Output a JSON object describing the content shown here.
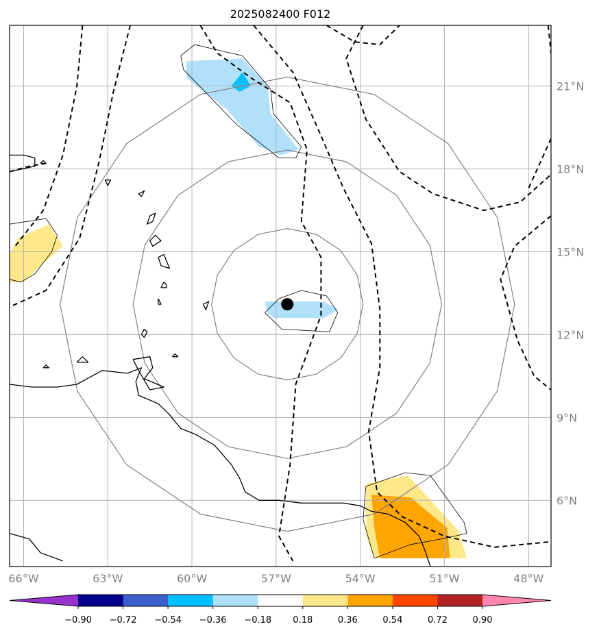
{
  "chart_data": {
    "type": "map",
    "title": "2025082400 F012",
    "lon_range": [
      -66.5,
      -47.2
    ],
    "lat_range": [
      3.6,
      23.2
    ],
    "lon_ticks": [
      {
        "value": -66,
        "label": "66°W"
      },
      {
        "value": -63,
        "label": "63°W"
      },
      {
        "value": -60,
        "label": "60°W"
      },
      {
        "value": -57,
        "label": "57°W"
      },
      {
        "value": -54,
        "label": "54°W"
      },
      {
        "value": -51,
        "label": "51°W"
      },
      {
        "value": -48,
        "label": "48°W"
      }
    ],
    "lat_ticks": [
      {
        "value": 21,
        "label": "21°N"
      },
      {
        "value": 18,
        "label": "18°N"
      },
      {
        "value": 15,
        "label": "15°N"
      },
      {
        "value": 12,
        "label": "12°N"
      },
      {
        "value": 9,
        "label": "9°N"
      },
      {
        "value": 6,
        "label": "6°N"
      }
    ],
    "grid": true,
    "center": {
      "lon": -56.6,
      "lat": 13.1
    },
    "range_rings_deg": [
      2.7,
      5.5,
      8.1
    ],
    "colorbar": {
      "levels": [
        -0.9,
        -0.72,
        -0.54,
        -0.36,
        -0.18,
        0.18,
        0.36,
        0.54,
        0.72,
        0.9
      ],
      "tick_labels": [
        "−0.90",
        "−0.72",
        "−0.54",
        "−0.36",
        "−0.18",
        "0.18",
        "0.36",
        "0.54",
        "0.72",
        "0.90"
      ],
      "colors": [
        "#9932cc",
        "#00008b",
        "#3a5fcd",
        "#00bfff",
        "#b0e0fa",
        "#ffffff",
        "#ffe88a",
        "#ffa500",
        "#ff4500",
        "#b22222",
        "#ff86b0"
      ],
      "extend": "both"
    },
    "shaded_regions": [
      {
        "value_range": [
          -0.36,
          -0.18
        ],
        "color": "#b0e0fa",
        "points": [
          [
            -60.2,
            21.9
          ],
          [
            -58.2,
            22.0
          ],
          [
            -57.3,
            21.0
          ],
          [
            -57.2,
            20.0
          ],
          [
            -56.2,
            18.7
          ],
          [
            -56.8,
            18.5
          ],
          [
            -57.6,
            18.8
          ],
          [
            -58.8,
            20.2
          ],
          [
            -60.2,
            21.3
          ]
        ]
      },
      {
        "value_range": [
          -0.54,
          -0.36
        ],
        "color": "#00bfff",
        "points": [
          [
            -58.2,
            21.5
          ],
          [
            -57.9,
            21.0
          ],
          [
            -58.3,
            20.8
          ],
          [
            -58.6,
            21.0
          ]
        ]
      },
      {
        "value_range": [
          -0.36,
          -0.18
        ],
        "color": "#b0e0fa",
        "points": [
          [
            -57.4,
            13.2
          ],
          [
            -55.3,
            13.2
          ],
          [
            -54.8,
            12.9
          ],
          [
            -55.3,
            12.6
          ],
          [
            -57.1,
            12.6
          ],
          [
            -57.3,
            12.8
          ]
        ]
      },
      {
        "value_range": [
          0.18,
          0.36
        ],
        "color": "#ffe88a",
        "points": [
          [
            -66.5,
            14.9
          ],
          [
            -66.2,
            15.5
          ],
          [
            -65.1,
            16.0
          ],
          [
            -64.6,
            15.2
          ],
          [
            -65.5,
            14.4
          ],
          [
            -66.0,
            13.9
          ],
          [
            -66.5,
            13.9
          ]
        ]
      },
      {
        "value_range": [
          0.18,
          0.36
        ],
        "color": "#ffe88a",
        "points": [
          [
            -53.8,
            6.6
          ],
          [
            -52.3,
            6.9
          ],
          [
            -50.5,
            4.9
          ],
          [
            -50.2,
            3.9
          ],
          [
            -53.5,
            3.9
          ],
          [
            -53.8,
            4.8
          ]
        ]
      },
      {
        "value_range": [
          0.36,
          0.54
        ],
        "color": "#ffa500",
        "points": [
          [
            -53.6,
            6.2
          ],
          [
            -52.2,
            6.1
          ],
          [
            -50.9,
            5.0
          ],
          [
            -50.8,
            3.9
          ],
          [
            -53.3,
            3.9
          ],
          [
            -53.5,
            5.0
          ]
        ]
      }
    ],
    "dashed_contours": [
      [
        [
          -63.9,
          23.2
        ],
        [
          -64.1,
          21.0
        ],
        [
          -64.6,
          18.5
        ],
        [
          -65.3,
          16.5
        ],
        [
          -66.3,
          15.2
        ]
      ],
      [
        [
          -62.2,
          23.2
        ],
        [
          -62.8,
          20.8
        ],
        [
          -63.3,
          18.3
        ],
        [
          -64.0,
          15.5
        ],
        [
          -65.2,
          13.6
        ],
        [
          -66.5,
          13.0
        ]
      ],
      [
        [
          -66.5,
          17.9
        ],
        [
          -65.8,
          18.1
        ],
        [
          -65.2,
          18.2
        ]
      ],
      [
        [
          -59.7,
          23.2
        ],
        [
          -59.1,
          22.2
        ],
        [
          -57.9,
          21.3
        ],
        [
          -56.5,
          20.4
        ],
        [
          -55.9,
          18.7
        ],
        [
          -56.1,
          16.1
        ],
        [
          -55.4,
          14.8
        ],
        [
          -55.4,
          12.7
        ],
        [
          -56.3,
          10.2
        ],
        [
          -56.5,
          7.3
        ],
        [
          -56.9,
          4.7
        ],
        [
          -56.4,
          3.8
        ]
      ],
      [
        [
          -57.8,
          23.2
        ],
        [
          -56.4,
          21.5
        ],
        [
          -55.4,
          19.2
        ],
        [
          -54.6,
          17.3
        ],
        [
          -53.6,
          15.3
        ],
        [
          -53.3,
          12.9
        ],
        [
          -53.3,
          10.8
        ],
        [
          -53.7,
          8.5
        ],
        [
          -53.4,
          6.3
        ],
        [
          -52.5,
          5.4
        ],
        [
          -51.0,
          4.7
        ],
        [
          -49.2,
          4.3
        ],
        [
          -47.2,
          4.5
        ]
      ],
      [
        [
          -55.2,
          23.2
        ],
        [
          -54.2,
          22.6
        ],
        [
          -53.3,
          22.5
        ],
        [
          -52.6,
          23.2
        ]
      ],
      [
        [
          -53.9,
          23.2
        ],
        [
          -54.5,
          22.0
        ],
        [
          -53.8,
          19.8
        ],
        [
          -52.6,
          17.9
        ],
        [
          -51.4,
          17.1
        ],
        [
          -49.6,
          16.5
        ],
        [
          -48.3,
          16.8
        ],
        [
          -47.2,
          17.8
        ]
      ],
      [
        [
          -47.3,
          23.2
        ],
        [
          -47.2,
          22.2
        ]
      ],
      [
        [
          -47.2,
          19.1
        ],
        [
          -48.0,
          17.3
        ]
      ],
      [
        [
          -47.2,
          16.3
        ],
        [
          -48.5,
          15.2
        ],
        [
          -49.0,
          14.0
        ],
        [
          -48.4,
          11.8
        ],
        [
          -47.8,
          10.5
        ],
        [
          -47.2,
          10.0
        ]
      ]
    ],
    "thin_contours": [
      [
        [
          -60.4,
          22.1
        ],
        [
          -59.9,
          22.5
        ],
        [
          -58.2,
          22.1
        ],
        [
          -57.2,
          20.9
        ],
        [
          -57.1,
          20.0
        ],
        [
          -56.1,
          18.8
        ],
        [
          -56.3,
          18.4
        ],
        [
          -56.9,
          18.4
        ],
        [
          -58.4,
          19.6
        ],
        [
          -60.3,
          21.6
        ],
        [
          -60.4,
          22.1
        ]
      ],
      [
        [
          -66.5,
          16.0
        ],
        [
          -65.2,
          16.2
        ],
        [
          -64.8,
          15.6
        ],
        [
          -65.0,
          15.0
        ],
        [
          -65.6,
          14.2
        ],
        [
          -66.1,
          13.9
        ],
        [
          -66.5,
          14.0
        ]
      ],
      [
        [
          -57.4,
          12.8
        ],
        [
          -56.9,
          13.3
        ],
        [
          -56.1,
          13.6
        ],
        [
          -55.2,
          13.4
        ],
        [
          -54.8,
          12.8
        ],
        [
          -55.1,
          12.1
        ],
        [
          -56.8,
          12.2
        ],
        [
          -57.4,
          12.8
        ]
      ],
      [
        [
          -53.8,
          6.5
        ],
        [
          -52.4,
          7.0
        ],
        [
          -51.5,
          6.9
        ],
        [
          -50.3,
          5.2
        ],
        [
          -50.2,
          4.8
        ],
        [
          -51.1,
          4.6
        ],
        [
          -52.2,
          4.4
        ],
        [
          -53.5,
          3.9
        ],
        [
          -53.9,
          5.3
        ],
        [
          -53.8,
          6.5
        ]
      ]
    ],
    "coastlines": [
      [
        [
          -66.5,
          10.2
        ],
        [
          -65.7,
          10.1
        ],
        [
          -64.8,
          10.1
        ],
        [
          -64.1,
          10.2
        ],
        [
          -63.2,
          10.7
        ],
        [
          -62.3,
          10.6
        ],
        [
          -61.8,
          10.8
        ],
        [
          -62.0,
          10.3
        ],
        [
          -61.9,
          9.8
        ],
        [
          -61.2,
          9.5
        ],
        [
          -60.8,
          9.1
        ],
        [
          -60.4,
          8.6
        ],
        [
          -59.9,
          8.4
        ],
        [
          -59.2,
          8.0
        ],
        [
          -58.6,
          7.3
        ],
        [
          -58.3,
          6.8
        ],
        [
          -58.1,
          6.3
        ],
        [
          -57.6,
          6.0
        ],
        [
          -56.9,
          6.0
        ],
        [
          -56.1,
          5.9
        ],
        [
          -55.3,
          5.9
        ],
        [
          -54.6,
          5.9
        ],
        [
          -54.0,
          5.8
        ],
        [
          -53.6,
          5.6
        ],
        [
          -53.0,
          5.5
        ],
        [
          -52.4,
          5.2
        ],
        [
          -51.9,
          4.7
        ],
        [
          -51.7,
          4.2
        ],
        [
          -51.5,
          3.6
        ]
      ],
      [
        [
          -66.5,
          4.8
        ],
        [
          -65.8,
          4.6
        ],
        [
          -65.4,
          4.1
        ],
        [
          -64.6,
          3.8
        ]
      ],
      [
        [
          -62.1,
          11.1
        ],
        [
          -61.5,
          11.2
        ],
        [
          -61.4,
          10.8
        ],
        [
          -61.7,
          10.4
        ],
        [
          -61.0,
          10.1
        ],
        [
          -61.5,
          10.0
        ],
        [
          -61.9,
          10.7
        ],
        [
          -62.1,
          11.1
        ]
      ],
      [
        [
          -66.5,
          18.5
        ],
        [
          -66.0,
          18.5
        ],
        [
          -65.6,
          18.4
        ],
        [
          -65.6,
          18.1
        ],
        [
          -66.5,
          17.9
        ]
      ],
      [
        [
          -61.8,
          17.0
        ],
        [
          -61.7,
          17.2
        ],
        [
          -61.9,
          17.1
        ],
        [
          -61.8,
          17.0
        ]
      ],
      [
        [
          -61.5,
          16.3
        ],
        [
          -61.3,
          16.4
        ],
        [
          -61.4,
          16.1
        ],
        [
          -61.6,
          16.0
        ],
        [
          -61.5,
          16.3
        ]
      ],
      [
        [
          -61.3,
          15.6
        ],
        [
          -61.1,
          15.4
        ],
        [
          -61.4,
          15.2
        ],
        [
          -61.5,
          15.4
        ],
        [
          -61.3,
          15.6
        ]
      ],
      [
        [
          -61.0,
          14.9
        ],
        [
          -61.2,
          14.8
        ],
        [
          -61.1,
          14.5
        ],
        [
          -60.8,
          14.4
        ],
        [
          -61.0,
          14.9
        ]
      ],
      [
        [
          -61.0,
          13.9
        ],
        [
          -60.9,
          13.8
        ],
        [
          -60.9,
          13.7
        ],
        [
          -61.1,
          13.7
        ],
        [
          -61.0,
          13.9
        ]
      ],
      [
        [
          -61.2,
          13.3
        ],
        [
          -61.1,
          13.1
        ],
        [
          -61.2,
          13.1
        ],
        [
          -61.2,
          13.3
        ]
      ],
      [
        [
          -59.6,
          13.1
        ],
        [
          -59.4,
          13.2
        ],
        [
          -59.5,
          12.9
        ],
        [
          -59.6,
          13.1
        ]
      ],
      [
        [
          -61.7,
          12.2
        ],
        [
          -61.6,
          12.1
        ],
        [
          -61.7,
          11.9
        ],
        [
          -61.8,
          12.0
        ],
        [
          -61.7,
          12.2
        ]
      ],
      [
        [
          -60.7,
          11.2
        ],
        [
          -60.6,
          11.3
        ],
        [
          -60.5,
          11.2
        ],
        [
          -60.7,
          11.2
        ]
      ],
      [
        [
          -64.1,
          11.0
        ],
        [
          -63.9,
          11.2
        ],
        [
          -63.7,
          11.0
        ],
        [
          -64.1,
          11.0
        ]
      ],
      [
        [
          -65.3,
          10.8
        ],
        [
          -65.2,
          10.9
        ],
        [
          -65.1,
          10.8
        ],
        [
          -65.3,
          10.8
        ]
      ],
      [
        [
          -63.1,
          17.6
        ],
        [
          -63.0,
          17.4
        ],
        [
          -62.9,
          17.6
        ],
        [
          -63.1,
          17.6
        ]
      ],
      [
        [
          -65.4,
          18.2
        ],
        [
          -65.3,
          18.3
        ],
        [
          -65.2,
          18.2
        ],
        [
          -65.4,
          18.2
        ]
      ]
    ],
    "storm_marker": {
      "lon": -56.6,
      "lat": 13.1
    }
  }
}
